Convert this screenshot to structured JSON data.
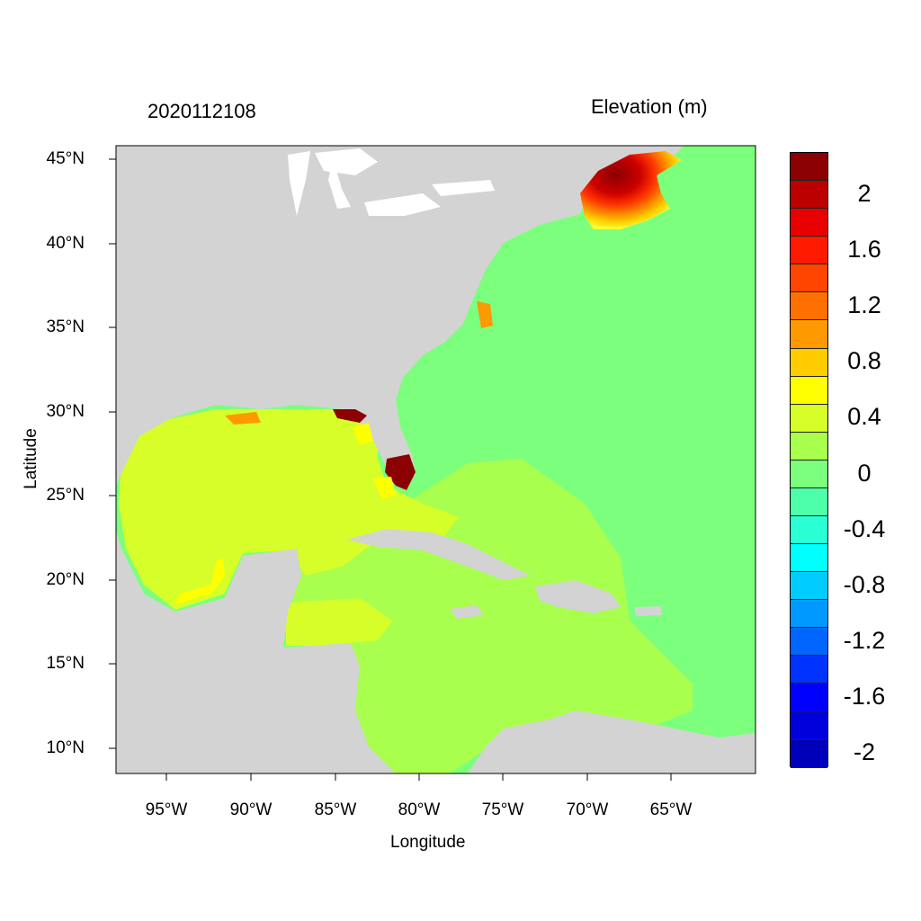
{
  "titles": {
    "left": "2020112108",
    "right": "Elevation (m)"
  },
  "axes": {
    "xlabel": "Longitude",
    "ylabel": "Latitude",
    "x_ticks": [
      "95°W",
      "90°W",
      "85°W",
      "80°W",
      "75°W",
      "70°W",
      "65°W"
    ],
    "y_ticks": [
      "45°N",
      "40°N",
      "35°N",
      "30°N",
      "25°N",
      "20°N",
      "15°N",
      "10°N"
    ],
    "lon_range": [
      -98,
      -60
    ],
    "lat_range": [
      8.5,
      46.3
    ]
  },
  "colorbar": {
    "title": "Elevation (m)",
    "labels": [
      "2",
      "1.6",
      "1.2",
      "0.8",
      "0.4",
      "0",
      "-0.4",
      "-0.8",
      "-1.2",
      "-1.6",
      "-2"
    ],
    "colors": [
      "#8b0000",
      "#bb0000",
      "#e60000",
      "#ff1a00",
      "#ff4500",
      "#ff7000",
      "#ff9900",
      "#ffcc00",
      "#ffff00",
      "#d6ff2a",
      "#a8ff4d",
      "#7cff7c",
      "#4dffa8",
      "#2affd4",
      "#00ffff",
      "#00ccff",
      "#0099ff",
      "#0066ff",
      "#0033ff",
      "#0000ff",
      "#0000dd",
      "#0000bb"
    ]
  },
  "colors": {
    "land": "#d3d3d3",
    "atlantic": "#7cff7c",
    "gulf": "#d6ff2a",
    "caribbean": "#a8ff4d",
    "maine_surge": "#8b0000"
  }
}
